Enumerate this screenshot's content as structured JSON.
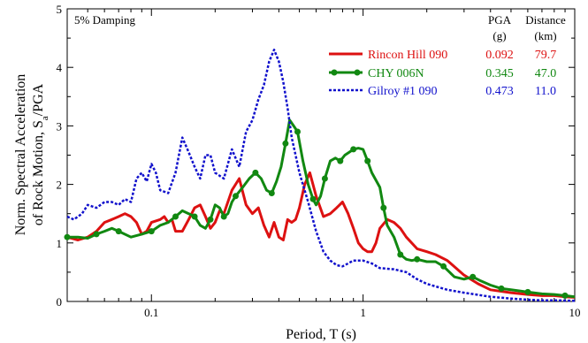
{
  "chart_data": {
    "type": "line",
    "xlabel": "Period, T (s)",
    "ylabel_line1": "Norm. Spectral Acceleration",
    "ylabel_line2": "of Rock Motion, S",
    "ylabel_subscript": "a",
    "ylabel_suffix": "/PGA",
    "x_scale": "log",
    "xlim": [
      0.04,
      10
    ],
    "ylim": [
      0,
      5
    ],
    "x_ticks": [
      {
        "value": 0.1,
        "label": "0.1"
      },
      {
        "value": 1,
        "label": "1"
      },
      {
        "value": 10,
        "label": "10"
      }
    ],
    "y_ticks": [
      {
        "value": 0,
        "label": "0"
      },
      {
        "value": 1,
        "label": "1"
      },
      {
        "value": 2,
        "label": "2"
      },
      {
        "value": 3,
        "label": "3"
      },
      {
        "value": 4,
        "label": "4"
      },
      {
        "value": 5,
        "label": "5"
      }
    ],
    "annotation": "5% Damping",
    "legend": {
      "col_pga_label": "PGA",
      "col_pga_unit": "(g)",
      "col_dist_label": "Distance",
      "col_dist_unit": "(km)"
    },
    "series": [
      {
        "name": "Rincon Hill 090",
        "pga": "0.092",
        "distance": "79.7",
        "color": "#dd1111",
        "style": "solid",
        "points": [
          [
            0.04,
            1.1
          ],
          [
            0.045,
            1.05
          ],
          [
            0.05,
            1.1
          ],
          [
            0.055,
            1.2
          ],
          [
            0.06,
            1.35
          ],
          [
            0.065,
            1.4
          ],
          [
            0.07,
            1.45
          ],
          [
            0.075,
            1.5
          ],
          [
            0.08,
            1.45
          ],
          [
            0.085,
            1.35
          ],
          [
            0.09,
            1.15
          ],
          [
            0.095,
            1.2
          ],
          [
            0.1,
            1.35
          ],
          [
            0.11,
            1.4
          ],
          [
            0.115,
            1.45
          ],
          [
            0.12,
            1.35
          ],
          [
            0.125,
            1.4
          ],
          [
            0.13,
            1.2
          ],
          [
            0.14,
            1.2
          ],
          [
            0.15,
            1.4
          ],
          [
            0.16,
            1.6
          ],
          [
            0.17,
            1.65
          ],
          [
            0.18,
            1.45
          ],
          [
            0.19,
            1.25
          ],
          [
            0.2,
            1.35
          ],
          [
            0.21,
            1.55
          ],
          [
            0.22,
            1.5
          ],
          [
            0.24,
            1.9
          ],
          [
            0.26,
            2.1
          ],
          [
            0.28,
            1.65
          ],
          [
            0.3,
            1.5
          ],
          [
            0.32,
            1.6
          ],
          [
            0.34,
            1.3
          ],
          [
            0.36,
            1.1
          ],
          [
            0.38,
            1.35
          ],
          [
            0.4,
            1.1
          ],
          [
            0.42,
            1.05
          ],
          [
            0.44,
            1.4
          ],
          [
            0.46,
            1.35
          ],
          [
            0.48,
            1.4
          ],
          [
            0.5,
            1.6
          ],
          [
            0.53,
            2.0
          ],
          [
            0.56,
            2.2
          ],
          [
            0.6,
            1.8
          ],
          [
            0.65,
            1.45
          ],
          [
            0.7,
            1.5
          ],
          [
            0.75,
            1.6
          ],
          [
            0.8,
            1.7
          ],
          [
            0.85,
            1.5
          ],
          [
            0.9,
            1.25
          ],
          [
            0.95,
            1.0
          ],
          [
            1.0,
            0.9
          ],
          [
            1.05,
            0.85
          ],
          [
            1.1,
            0.85
          ],
          [
            1.15,
            1.0
          ],
          [
            1.2,
            1.25
          ],
          [
            1.3,
            1.4
          ],
          [
            1.4,
            1.35
          ],
          [
            1.5,
            1.25
          ],
          [
            1.6,
            1.1
          ],
          [
            1.8,
            0.9
          ],
          [
            2.0,
            0.85
          ],
          [
            2.2,
            0.8
          ],
          [
            2.5,
            0.7
          ],
          [
            3,
            0.45
          ],
          [
            3.5,
            0.3
          ],
          [
            4,
            0.2
          ],
          [
            5,
            0.15
          ],
          [
            6,
            0.12
          ],
          [
            7,
            0.1
          ],
          [
            8,
            0.1
          ],
          [
            9,
            0.08
          ],
          [
            10,
            0.07
          ]
        ]
      },
      {
        "name": "CHY 006N",
        "pga": "0.345",
        "distance": "47.0",
        "color": "#118811",
        "style": "solid-markers",
        "points": [
          [
            0.04,
            1.1
          ],
          [
            0.045,
            1.1
          ],
          [
            0.05,
            1.08
          ],
          [
            0.055,
            1.15
          ],
          [
            0.06,
            1.2
          ],
          [
            0.065,
            1.25
          ],
          [
            0.07,
            1.2
          ],
          [
            0.08,
            1.1
          ],
          [
            0.09,
            1.15
          ],
          [
            0.1,
            1.2
          ],
          [
            0.11,
            1.3
          ],
          [
            0.12,
            1.35
          ],
          [
            0.13,
            1.45
          ],
          [
            0.14,
            1.55
          ],
          [
            0.15,
            1.5
          ],
          [
            0.16,
            1.45
          ],
          [
            0.17,
            1.3
          ],
          [
            0.18,
            1.25
          ],
          [
            0.19,
            1.4
          ],
          [
            0.2,
            1.65
          ],
          [
            0.21,
            1.6
          ],
          [
            0.22,
            1.45
          ],
          [
            0.23,
            1.5
          ],
          [
            0.24,
            1.7
          ],
          [
            0.25,
            1.8
          ],
          [
            0.27,
            1.95
          ],
          [
            0.29,
            2.1
          ],
          [
            0.31,
            2.2
          ],
          [
            0.33,
            2.1
          ],
          [
            0.35,
            1.9
          ],
          [
            0.37,
            1.85
          ],
          [
            0.39,
            2.05
          ],
          [
            0.41,
            2.3
          ],
          [
            0.43,
            2.7
          ],
          [
            0.45,
            3.1
          ],
          [
            0.47,
            3.0
          ],
          [
            0.49,
            2.9
          ],
          [
            0.52,
            2.4
          ],
          [
            0.55,
            2.0
          ],
          [
            0.58,
            1.75
          ],
          [
            0.6,
            1.65
          ],
          [
            0.63,
            1.8
          ],
          [
            0.66,
            2.1
          ],
          [
            0.7,
            2.4
          ],
          [
            0.74,
            2.45
          ],
          [
            0.78,
            2.4
          ],
          [
            0.82,
            2.5
          ],
          [
            0.86,
            2.55
          ],
          [
            0.9,
            2.6
          ],
          [
            0.95,
            2.62
          ],
          [
            1.0,
            2.6
          ],
          [
            1.05,
            2.4
          ],
          [
            1.1,
            2.2
          ],
          [
            1.2,
            1.95
          ],
          [
            1.25,
            1.6
          ],
          [
            1.3,
            1.3
          ],
          [
            1.4,
            1.1
          ],
          [
            1.5,
            0.8
          ],
          [
            1.6,
            0.72
          ],
          [
            1.7,
            0.7
          ],
          [
            1.8,
            0.72
          ],
          [
            2.0,
            0.68
          ],
          [
            2.2,
            0.68
          ],
          [
            2.4,
            0.6
          ],
          [
            2.7,
            0.42
          ],
          [
            3.0,
            0.38
          ],
          [
            3.3,
            0.42
          ],
          [
            3.6,
            0.35
          ],
          [
            4.0,
            0.28
          ],
          [
            4.5,
            0.22
          ],
          [
            5.0,
            0.2
          ],
          [
            5.5,
            0.18
          ],
          [
            6.0,
            0.16
          ],
          [
            7.0,
            0.13
          ],
          [
            8.0,
            0.12
          ],
          [
            9.0,
            0.1
          ],
          [
            10.0,
            0.08
          ]
        ]
      },
      {
        "name": "Gilroy #1 090",
        "pga": "0.473",
        "distance": "11.0",
        "color": "#1111cc",
        "style": "dashed",
        "points": [
          [
            0.04,
            1.45
          ],
          [
            0.043,
            1.4
          ],
          [
            0.047,
            1.5
          ],
          [
            0.05,
            1.65
          ],
          [
            0.055,
            1.6
          ],
          [
            0.06,
            1.7
          ],
          [
            0.065,
            1.7
          ],
          [
            0.07,
            1.65
          ],
          [
            0.075,
            1.75
          ],
          [
            0.08,
            1.7
          ],
          [
            0.085,
            2.1
          ],
          [
            0.09,
            2.2
          ],
          [
            0.095,
            2.05
          ],
          [
            0.1,
            2.35
          ],
          [
            0.105,
            2.2
          ],
          [
            0.11,
            1.9
          ],
          [
            0.12,
            1.85
          ],
          [
            0.13,
            2.2
          ],
          [
            0.14,
            2.8
          ],
          [
            0.15,
            2.55
          ],
          [
            0.16,
            2.3
          ],
          [
            0.17,
            2.1
          ],
          [
            0.18,
            2.5
          ],
          [
            0.19,
            2.5
          ],
          [
            0.2,
            2.2
          ],
          [
            0.22,
            2.1
          ],
          [
            0.24,
            2.6
          ],
          [
            0.26,
            2.3
          ],
          [
            0.28,
            2.9
          ],
          [
            0.3,
            3.1
          ],
          [
            0.32,
            3.45
          ],
          [
            0.34,
            3.7
          ],
          [
            0.36,
            4.1
          ],
          [
            0.38,
            4.3
          ],
          [
            0.4,
            4.1
          ],
          [
            0.42,
            3.75
          ],
          [
            0.44,
            3.3
          ],
          [
            0.46,
            2.8
          ],
          [
            0.48,
            2.5
          ],
          [
            0.5,
            2.2
          ],
          [
            0.55,
            1.7
          ],
          [
            0.6,
            1.2
          ],
          [
            0.65,
            0.85
          ],
          [
            0.7,
            0.7
          ],
          [
            0.75,
            0.62
          ],
          [
            0.8,
            0.6
          ],
          [
            0.85,
            0.65
          ],
          [
            0.9,
            0.7
          ],
          [
            0.95,
            0.7
          ],
          [
            1.0,
            0.7
          ],
          [
            1.1,
            0.65
          ],
          [
            1.2,
            0.57
          ],
          [
            1.4,
            0.55
          ],
          [
            1.6,
            0.5
          ],
          [
            1.8,
            0.38
          ],
          [
            2.0,
            0.3
          ],
          [
            2.5,
            0.2
          ],
          [
            3,
            0.15
          ],
          [
            4,
            0.08
          ],
          [
            5,
            0.05
          ],
          [
            6,
            0.03
          ],
          [
            7,
            0.02
          ],
          [
            8,
            0.02
          ],
          [
            10,
            0.01
          ]
        ]
      }
    ]
  }
}
